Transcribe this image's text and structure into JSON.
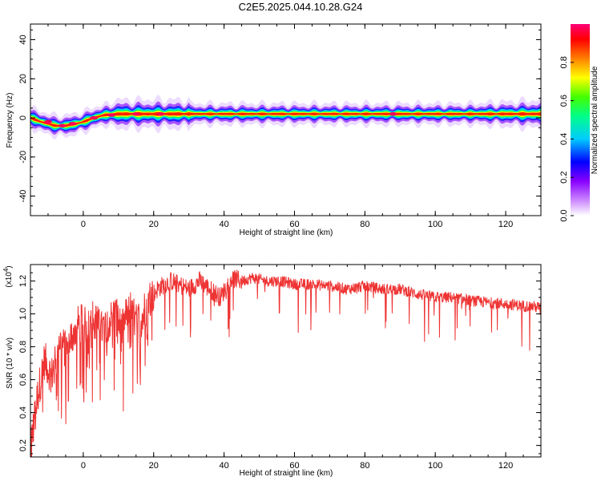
{
  "title": "C2E5.2025.044.10.28.G24",
  "chart_data": [
    {
      "type": "heatmap",
      "xlabel": "Height of straight line (km)",
      "ylabel": "Frequency (Hz)",
      "xlim": [
        -15,
        130
      ],
      "ylim": [
        -50,
        48
      ],
      "xticks": [
        0,
        20,
        40,
        60,
        80,
        100,
        120
      ],
      "yticks": [
        -40,
        -20,
        0,
        20,
        40
      ],
      "colorbar": {
        "label": "Normalized spectral amplitude",
        "range": [
          0,
          1
        ],
        "ticks": [
          0.0,
          0.2,
          0.4,
          0.6,
          0.8
        ],
        "colormap": "rainbow",
        "colors": [
          "#ffffff",
          "#9900ff",
          "#0000ff",
          "#00ffff",
          "#00ff00",
          "#ffff00",
          "#ff0000",
          "#ff0066"
        ]
      },
      "ridge": {
        "x": [
          -15,
          -12,
          -8,
          -5,
          -2,
          0,
          3,
          6,
          10,
          15,
          20,
          25,
          30,
          40,
          60,
          88,
          95,
          110,
          130
        ],
        "y": [
          0,
          -2,
          -4,
          -4,
          -3,
          -2,
          0,
          1.5,
          2,
          2,
          2,
          2,
          2,
          2,
          2,
          2,
          2,
          2,
          2
        ]
      }
    },
    {
      "type": "line",
      "xlabel": "Height of straight line (km)",
      "ylabel": "SNR (10 * v/v)",
      "scale_label": "(x10",
      "scale_exponent": "4",
      "scale_suffix": ")",
      "xlim": [
        -15,
        130
      ],
      "ylim": [
        0.13,
        1.3
      ],
      "xticks": [
        0,
        20,
        40,
        60,
        80,
        100,
        120
      ],
      "yticks": [
        0.2,
        0.4,
        0.6,
        0.8,
        1.0,
        1.2
      ],
      "line_color": "#ee3333",
      "series": [
        {
          "x": [
            -15,
            -13,
            -11,
            -9,
            -7,
            -5,
            -3,
            -1,
            1,
            3,
            5,
            7,
            9,
            11,
            13,
            15,
            17,
            19,
            21,
            23,
            25,
            27,
            30,
            33,
            36,
            39,
            42,
            45,
            48,
            52,
            56,
            60,
            65,
            70,
            75,
            80,
            85,
            90,
            95,
            100,
            105,
            110,
            115,
            120,
            125,
            130
          ],
          "y": [
            0.18,
            0.5,
            0.72,
            0.62,
            0.85,
            0.78,
            0.88,
            0.95,
            0.92,
            0.98,
            0.9,
            0.95,
            1.0,
            0.9,
            1.05,
            0.95,
            1.0,
            1.1,
            1.15,
            1.18,
            1.2,
            1.18,
            1.15,
            1.2,
            1.15,
            1.1,
            1.22,
            1.2,
            1.22,
            1.2,
            1.2,
            1.18,
            1.18,
            1.17,
            1.15,
            1.17,
            1.15,
            1.15,
            1.12,
            1.1,
            1.1,
            1.08,
            1.07,
            1.06,
            1.05,
            1.04
          ]
        }
      ]
    }
  ]
}
